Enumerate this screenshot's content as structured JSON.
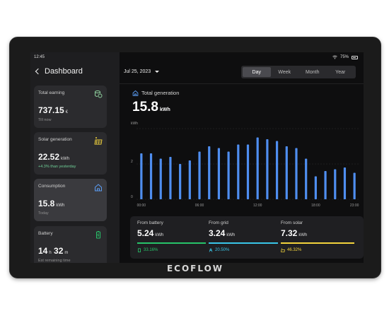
{
  "device": {
    "brand": "ECOFLOW"
  },
  "status_bar": {
    "time": "12:45",
    "battery": "75%"
  },
  "sidebar": {
    "back_label": "Dashboard",
    "cards": [
      {
        "title": "Total earning",
        "value": "737.15",
        "unit": "€",
        "sub": "Till now",
        "icon": "coins-icon"
      },
      {
        "title": "Solar generation",
        "value": "22.52",
        "unit": "kWh",
        "sub": "+4.3% than yesterday",
        "icon": "solar-panel-icon"
      },
      {
        "title": "Consumption",
        "value": "15.8",
        "unit": "kWh",
        "sub": "Today",
        "icon": "home-icon"
      },
      {
        "title": "Battery",
        "value_hours": "14",
        "value_h_unit": "h",
        "value_minutes": "32",
        "value_m_unit": "m",
        "sub": "Est remaining time",
        "icon": "battery-icon"
      }
    ]
  },
  "header": {
    "date": "Jul 25, 2023",
    "tabs": [
      "Day",
      "Week",
      "Month",
      "Year"
    ],
    "active_tab": "Day"
  },
  "summary": {
    "label": "Total generation",
    "value": "15.8",
    "unit": "kWh"
  },
  "chart_data": {
    "type": "bar",
    "ylabel": "kWh",
    "yticks": [
      "0",
      "2",
      "4"
    ],
    "ylim": [
      0,
      4
    ],
    "xticks": [
      "00:00",
      "06:00",
      "12:00",
      "18:00",
      "23:00"
    ],
    "values": [
      2.6,
      2.6,
      2.3,
      2.4,
      2.0,
      2.2,
      2.7,
      3.0,
      2.9,
      2.7,
      3.1,
      3.1,
      3.5,
      3.4,
      3.3,
      3.0,
      2.9,
      2.3,
      1.3,
      1.6,
      1.7,
      1.8,
      1.5
    ],
    "bar_color": "#4f8ef0",
    "grid": true
  },
  "sources": [
    {
      "label": "From battery",
      "value": "5.24",
      "unit": "kWh",
      "pct": "33.16%",
      "color": "#27c46a",
      "icon": "battery-icon"
    },
    {
      "label": "From grid",
      "value": "3.24",
      "unit": "kWh",
      "pct": "20.50%",
      "color": "#39c6e8",
      "icon": "grid-tower-icon"
    },
    {
      "label": "From solar",
      "value": "7.32",
      "unit": "kWh",
      "pct": "46.32%",
      "color": "#f2d33c",
      "icon": "solar-panel-icon"
    }
  ]
}
